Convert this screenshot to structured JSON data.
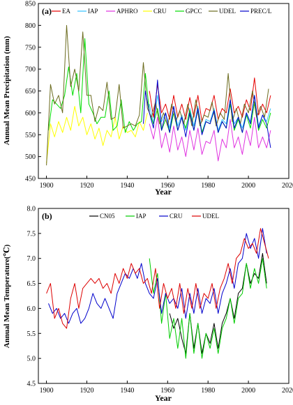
{
  "chart_data": [
    {
      "type": "line",
      "panel_label": "(a)",
      "xlabel": "Year",
      "ylabel": "Annual Mean Precipitation (mm)",
      "xlim": [
        1896,
        2020
      ],
      "ylim": [
        450,
        850
      ],
      "xticks": [
        "1900",
        "1920",
        "1940",
        "1960",
        "1980",
        "2000",
        "2020"
      ],
      "yticks": [
        "450",
        "500",
        "550",
        "600",
        "650",
        "700",
        "750",
        "800",
        "850"
      ],
      "legend_position": "top",
      "series": [
        {
          "name": "EA",
          "color": "#e60000",
          "years": [
            1951,
            1953,
            1955,
            1957,
            1959,
            1961,
            1963,
            1965,
            1967,
            1969,
            1971,
            1973,
            1975,
            1977,
            1979,
            1981,
            1983,
            1985,
            1987,
            1989,
            1991,
            1993,
            1995,
            1997,
            1999,
            2001,
            2003,
            2005,
            2007,
            2009,
            2011
          ],
          "values": [
            650,
            590,
            665,
            600,
            620,
            585,
            640,
            590,
            620,
            585,
            635,
            590,
            640,
            580,
            610,
            605,
            640,
            585,
            610,
            600,
            655,
            600,
            615,
            590,
            630,
            605,
            680,
            595,
            620,
            600,
            640
          ]
        },
        {
          "name": "IAP",
          "color": "#33c2ff",
          "years": [
            1951,
            1953,
            1955,
            1957,
            1959,
            1961,
            1963,
            1965,
            1967,
            1969,
            1971,
            1973,
            1975,
            1977,
            1979,
            1981,
            1983,
            1985,
            1987,
            1989,
            1991,
            1993,
            1995,
            1997,
            1999,
            2001,
            2003,
            2005,
            2007,
            2009,
            2011
          ],
          "values": [
            620,
            575,
            640,
            580,
            600,
            565,
            615,
            570,
            595,
            560,
            610,
            570,
            615,
            555,
            585,
            580,
            610,
            560,
            585,
            575,
            630,
            575,
            590,
            565,
            600,
            580,
            640,
            570,
            595,
            580,
            610
          ]
        },
        {
          "name": "APHRO",
          "color": "#e033e0",
          "years": [
            1951,
            1953,
            1955,
            1957,
            1959,
            1961,
            1963,
            1965,
            1967,
            1969,
            1971,
            1973,
            1975,
            1977,
            1979,
            1981,
            1983,
            1985,
            1987,
            1989,
            1991,
            1993,
            1995,
            1997,
            1999,
            2001,
            2003,
            2005,
            2007,
            2009,
            2011
          ],
          "values": [
            575,
            540,
            590,
            520,
            555,
            510,
            570,
            515,
            545,
            500,
            560,
            515,
            565,
            505,
            535,
            530,
            560,
            490,
            540,
            520,
            585,
            520,
            545,
            505,
            560,
            525,
            590,
            520,
            545,
            520,
            560
          ]
        },
        {
          "name": "CRU",
          "color": "#ffff00",
          "years": [
            1900,
            1902,
            1904,
            1906,
            1908,
            1910,
            1912,
            1914,
            1916,
            1918,
            1920,
            1922,
            1924,
            1926,
            1928,
            1930,
            1932,
            1934,
            1936,
            1938,
            1940,
            1942,
            1944,
            1946,
            1948,
            1950
          ],
          "values": [
            485,
            575,
            545,
            580,
            555,
            590,
            560,
            615,
            570,
            590,
            550,
            575,
            540,
            565,
            525,
            560,
            545,
            590,
            540,
            570,
            555,
            560,
            545,
            580,
            560,
            600
          ]
        },
        {
          "name": "GPCC",
          "color": "#00dd00",
          "years": [
            1901,
            1903,
            1905,
            1907,
            1909,
            1911,
            1913,
            1915,
            1917,
            1919,
            1921,
            1923,
            1925,
            1927,
            1929,
            1931,
            1933,
            1935,
            1937,
            1939,
            1941,
            1943,
            1945,
            1947,
            1949,
            1951,
            1953,
            1955,
            1957,
            1959,
            1961,
            1963,
            1965,
            1967,
            1969,
            1971,
            1973,
            1975,
            1977,
            1979,
            1981,
            1983,
            1985,
            1987,
            1989,
            1991,
            1993,
            1995,
            1997,
            1999,
            2001,
            2003,
            2005,
            2007,
            2009,
            2011
          ],
          "values": [
            560,
            630,
            620,
            610,
            640,
            705,
            640,
            690,
            600,
            770,
            620,
            600,
            575,
            590,
            590,
            650,
            560,
            570,
            630,
            555,
            580,
            560,
            575,
            580,
            690,
            600,
            575,
            610,
            560,
            585,
            555,
            600,
            560,
            590,
            565,
            605,
            560,
            610,
            555,
            580,
            575,
            605,
            555,
            580,
            565,
            620,
            560,
            585,
            555,
            595,
            565,
            625,
            560,
            585,
            565,
            600
          ]
        },
        {
          "name": "UDEL",
          "color": "#6b6b1e",
          "years": [
            1900,
            1902,
            1904,
            1906,
            1908,
            1910,
            1912,
            1914,
            1916,
            1918,
            1920,
            1922,
            1924,
            1926,
            1928,
            1930,
            1932,
            1934,
            1936,
            1938,
            1940,
            1942,
            1944,
            1946,
            1948,
            1950,
            1952,
            1954,
            1956,
            1958,
            1960,
            1962,
            1964,
            1966,
            1968,
            1970,
            1972,
            1974,
            1976,
            1978,
            1980,
            1982,
            1984,
            1986,
            1988,
            1990,
            1992,
            1994,
            1996,
            1998,
            2000,
            2002,
            2004,
            2006,
            2008,
            2010
          ],
          "values": [
            480,
            665,
            620,
            640,
            600,
            800,
            660,
            700,
            650,
            785,
            640,
            640,
            580,
            615,
            605,
            670,
            585,
            590,
            665,
            565,
            570,
            575,
            570,
            595,
            715,
            610,
            590,
            625,
            575,
            600,
            570,
            620,
            580,
            605,
            575,
            620,
            570,
            630,
            570,
            595,
            590,
            625,
            570,
            600,
            585,
            690,
            580,
            610,
            575,
            620,
            600,
            650,
            590,
            615,
            590,
            655
          ]
        },
        {
          "name": "PREC/L",
          "color": "#0000cc",
          "years": [
            1948,
            1949,
            1951,
            1953,
            1955,
            1957,
            1959,
            1961,
            1963,
            1965,
            1967,
            1969,
            1971,
            1973,
            1975,
            1977,
            1979,
            1981,
            1983,
            1985,
            1987,
            1989,
            1991,
            1993,
            1995,
            1997,
            1999,
            2001,
            2003,
            2005,
            2007,
            2009,
            2011
          ],
          "values": [
            575,
            650,
            600,
            565,
            675,
            560,
            600,
            555,
            615,
            560,
            590,
            545,
            600,
            560,
            610,
            550,
            580,
            575,
            605,
            555,
            580,
            565,
            630,
            565,
            590,
            555,
            600,
            575,
            640,
            565,
            595,
            575,
            520
          ]
        }
      ]
    },
    {
      "type": "line",
      "panel_label": "(b)",
      "xlabel": "Year",
      "ylabel": "Annual Mean Temperature(℃)",
      "xlim": [
        1896,
        2020
      ],
      "ylim": [
        4.5,
        8.0
      ],
      "xticks": [
        "1900",
        "1920",
        "1940",
        "1960",
        "1980",
        "2000",
        "2020"
      ],
      "yticks": [
        "4.5",
        "5.0",
        "5.5",
        "6.0",
        "6.5",
        "7.0",
        "7.5",
        "8.0"
      ],
      "legend_position": "top",
      "series": [
        {
          "name": "CN05",
          "color": "#000000",
          "years": [
            1961,
            1963,
            1965,
            1967,
            1969,
            1971,
            1973,
            1975,
            1977,
            1979,
            1981,
            1983,
            1985,
            1987,
            1989,
            1991,
            1993,
            1995,
            1997,
            1999,
            2001,
            2003,
            2005,
            2007,
            2009
          ],
          "values": [
            5.9,
            5.6,
            5.8,
            5.4,
            5.1,
            5.9,
            5.2,
            5.7,
            5.1,
            5.5,
            5.3,
            5.7,
            5.2,
            5.7,
            5.9,
            6.2,
            5.8,
            6.3,
            6.4,
            6.9,
            6.5,
            6.7,
            6.6,
            7.1,
            6.5
          ]
        },
        {
          "name": "IAP",
          "color": "#00cc00",
          "years": [
            1951,
            1953,
            1955,
            1957,
            1959,
            1961,
            1963,
            1965,
            1967,
            1969,
            1971,
            1973,
            1975,
            1977,
            1979,
            1981,
            1983,
            1985,
            1987,
            1989,
            1991,
            1993,
            1995,
            1997,
            1999,
            2001,
            2003,
            2005,
            2007,
            2009
          ],
          "values": [
            7.0,
            6.3,
            6.7,
            5.7,
            6.3,
            5.4,
            5.8,
            5.2,
            5.8,
            5.0,
            5.9,
            5.1,
            5.7,
            5.0,
            5.5,
            5.2,
            5.6,
            5.1,
            5.6,
            5.8,
            6.2,
            5.7,
            6.2,
            6.3,
            6.9,
            6.4,
            6.8,
            6.5,
            7.0,
            6.4
          ]
        },
        {
          "name": "CRU",
          "color": "#0000cc",
          "years": [
            1901,
            1903,
            1905,
            1907,
            1909,
            1911,
            1913,
            1915,
            1917,
            1919,
            1921,
            1923,
            1925,
            1927,
            1929,
            1931,
            1933,
            1935,
            1937,
            1939,
            1941,
            1943,
            1945,
            1947,
            1949,
            1951,
            1953,
            1955,
            1957,
            1959,
            1961,
            1963,
            1965,
            1967,
            1969,
            1971,
            1973,
            1975,
            1977,
            1979,
            1981,
            1983,
            1985,
            1987,
            1989,
            1991,
            1993,
            1995,
            1997,
            1999,
            2001,
            2003,
            2005,
            2007,
            2009
          ],
          "values": [
            6.1,
            5.9,
            6.0,
            5.8,
            5.9,
            5.7,
            5.9,
            6.0,
            5.7,
            5.8,
            6.0,
            6.3,
            6.1,
            6.0,
            6.2,
            6.0,
            5.8,
            6.3,
            6.5,
            6.7,
            6.6,
            6.8,
            6.6,
            6.9,
            6.5,
            6.3,
            6.2,
            6.6,
            5.9,
            6.3,
            6.1,
            6.2,
            6.0,
            6.4,
            5.8,
            6.3,
            5.9,
            6.4,
            5.9,
            6.2,
            6.1,
            6.4,
            5.9,
            6.3,
            6.5,
            6.8,
            6.4,
            6.9,
            7.0,
            7.5,
            7.2,
            7.4,
            7.0,
            7.6,
            7.1
          ]
        },
        {
          "name": "UDEL",
          "color": "#dd0000",
          "years": [
            1900,
            1902,
            1904,
            1906,
            1908,
            1910,
            1912,
            1914,
            1916,
            1918,
            1920,
            1922,
            1924,
            1926,
            1928,
            1930,
            1932,
            1934,
            1936,
            1938,
            1940,
            1942,
            1944,
            1946,
            1948,
            1950,
            1952,
            1954,
            1956,
            1958,
            1960,
            1962,
            1964,
            1966,
            1968,
            1970,
            1972,
            1974,
            1976,
            1978,
            1980,
            1982,
            1984,
            1986,
            1988,
            1990,
            1992,
            1994,
            1996,
            1998,
            2000,
            2002,
            2004,
            2006,
            2008,
            2010
          ],
          "values": [
            6.3,
            6.5,
            5.8,
            6.0,
            5.7,
            5.6,
            6.2,
            6.5,
            6.0,
            6.4,
            6.5,
            6.6,
            6.5,
            6.6,
            6.4,
            6.5,
            6.3,
            6.7,
            6.5,
            6.8,
            6.6,
            6.9,
            6.7,
            6.8,
            6.5,
            6.6,
            6.3,
            6.8,
            6.0,
            6.5,
            6.2,
            6.4,
            6.0,
            6.5,
            5.9,
            6.4,
            6.0,
            6.5,
            6.0,
            6.3,
            6.2,
            6.5,
            6.0,
            6.4,
            6.6,
            6.9,
            6.5,
            7.0,
            7.1,
            7.4,
            7.2,
            7.3,
            7.1,
            7.6,
            7.3,
            7.0
          ]
        }
      ]
    }
  ]
}
